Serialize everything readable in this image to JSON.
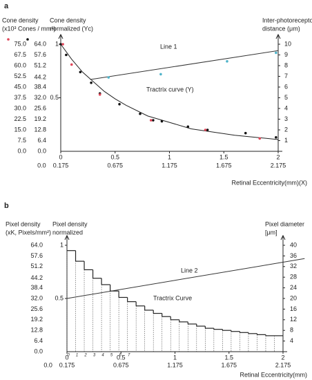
{
  "chart_data": [
    {
      "type": "line",
      "title": "a",
      "y3label": [
        "Cone density",
        "(x10³ Cones / mm²)"
      ],
      "ylabel": [
        "Cone density",
        "normalized (Yc)"
      ],
      "y2label": [
        "Inter-photoreceptor",
        "distance (μm)"
      ],
      "xlabel": "Retinal  Eccentricity(mm)(X)",
      "xlim": [
        0,
        2
      ],
      "xticks": [
        0,
        0.5,
        1,
        1.5,
        2
      ],
      "x2lim": [
        0.175,
        2.175
      ],
      "x2ticks": [
        {
          "value": 0,
          "label": "0.0"
        },
        0.175,
        0.675,
        1.175,
        1.675,
        2.175
      ],
      "ylim": [
        0,
        1
      ],
      "yticks": [
        0.5,
        1
      ],
      "y2lim": [
        0,
        10
      ],
      "y2ticks": [
        1,
        2,
        3,
        4,
        5,
        6,
        7,
        8,
        9,
        10
      ],
      "y3lim": [
        0,
        75
      ],
      "y3ticks": [
        {
          "value": 75,
          "label": "75.0"
        },
        67.5,
        {
          "value": 60,
          "label": "60.0"
        },
        52.5,
        {
          "value": 45,
          "label": "45.0"
        },
        37.5,
        {
          "value": 30,
          "label": "30.0"
        },
        22.5,
        {
          "value": 15,
          "label": "15.0"
        },
        7.5,
        {
          "value": 0,
          "label": "0.0"
        }
      ],
      "y4lim": [
        0,
        64
      ],
      "y4ticks": [
        {
          "value": 64,
          "label": "64.0"
        },
        57.6,
        51.2,
        44.2,
        38.4,
        {
          "value": 32,
          "label": "32.0"
        },
        25.6,
        19.2,
        12.8,
        6.4,
        {
          "value": 0,
          "label": "0.0"
        }
      ],
      "series": [
        {
          "name": "Tractrix curve (Y)",
          "style": "line",
          "color": "#222222",
          "x": [
            0,
            0.1,
            0.2,
            0.3,
            0.4,
            0.5,
            0.6,
            0.8,
            1.0,
            1.2,
            1.4,
            1.6,
            1.8,
            2.0
          ],
          "values": [
            1.0,
            0.86,
            0.74,
            0.65,
            0.56,
            0.49,
            0.43,
            0.33,
            0.27,
            0.21,
            0.18,
            0.15,
            0.13,
            0.11
          ]
        },
        {
          "name": "Line 1",
          "style": "line",
          "axis": "y2",
          "color": "#333333",
          "x": [
            0.27,
            2.0
          ],
          "values": [
            6.7,
            9.4
          ]
        },
        {
          "style": "points",
          "color": "#111111",
          "x": [
            0,
            0.05,
            0.18,
            0.28,
            0.36,
            0.54,
            0.73,
            0.85,
            0.93,
            1.17,
            1.35,
            1.7,
            1.98
          ],
          "values": [
            1.0,
            0.9,
            0.74,
            0.64,
            0.54,
            0.44,
            0.35,
            0.29,
            0.28,
            0.23,
            0.2,
            0.17,
            0.13
          ]
        },
        {
          "style": "points",
          "color": "#e0475a",
          "x": [
            0.02,
            0.1,
            0.36,
            0.83,
            1.33,
            1.83
          ],
          "values": [
            1.0,
            0.81,
            0.53,
            0.29,
            0.2,
            0.12
          ]
        },
        {
          "style": "points",
          "axis": "y2",
          "color": "#4fb3c9",
          "x": [
            0.44,
            0.92,
            1.53,
            1.98
          ],
          "values": [
            6.9,
            7.2,
            8.4,
            9.2
          ]
        }
      ]
    },
    {
      "type": "line",
      "title": "b",
      "y3label": [
        "Pixel density",
        "(xK, Pixels/mm²)"
      ],
      "ylabel": [
        "Pixel density",
        "normalized"
      ],
      "y2label": [
        "Pixel diameter",
        "[μm]"
      ],
      "xlabel": "Retinal  Eccentricity(mm)",
      "xlim": [
        0,
        2
      ],
      "xticks": [
        0,
        0.5,
        1,
        1.5,
        2
      ],
      "x2lim": [
        0.175,
        2.175
      ],
      "x2ticks": [
        {
          "value": 0,
          "label": "0.0"
        },
        0.175,
        0.675,
        1.175,
        1.675,
        2.175
      ],
      "ylim": [
        0,
        1
      ],
      "yticks": [
        0.5,
        1
      ],
      "y2lim": [
        0,
        40
      ],
      "y2ticks": [
        4,
        8,
        12,
        16,
        20,
        24,
        28,
        32,
        36,
        40
      ],
      "y3lim": [
        0,
        64
      ],
      "y3ticks": [
        {
          "value": 64,
          "label": "64.0"
        },
        57.6,
        51.2,
        44.2,
        38.4,
        {
          "value": 32,
          "label": "32.0"
        },
        25.6,
        19.2,
        12.8,
        6.4,
        {
          "value": 0,
          "label": "0.0"
        }
      ],
      "step_labels": [
        "0",
        "1",
        "2",
        "3",
        "4",
        "5",
        "6",
        "7"
      ],
      "series": [
        {
          "name": "Tractrix Curve",
          "style": "steps",
          "color": "#222222",
          "bins": [
            0,
            0.08,
            0.16,
            0.24,
            0.32,
            0.4,
            0.48,
            0.56,
            0.64,
            0.72,
            0.8,
            0.88,
            0.96,
            1.04,
            1.12,
            1.2,
            1.28,
            1.36,
            1.44,
            1.52,
            1.6,
            1.68,
            1.76,
            1.84,
            1.92,
            2.0
          ],
          "values": [
            0.95,
            0.85,
            0.77,
            0.69,
            0.63,
            0.57,
            0.51,
            0.47,
            0.43,
            0.39,
            0.36,
            0.33,
            0.3,
            0.28,
            0.26,
            0.24,
            0.22,
            0.21,
            0.2,
            0.19,
            0.18,
            0.17,
            0.16,
            0.15,
            0.15
          ]
        },
        {
          "name": "Line 2",
          "style": "line",
          "axis": "y2",
          "color": "#333333",
          "x": [
            0,
            2.2
          ],
          "values": [
            20,
            35
          ]
        }
      ]
    }
  ]
}
